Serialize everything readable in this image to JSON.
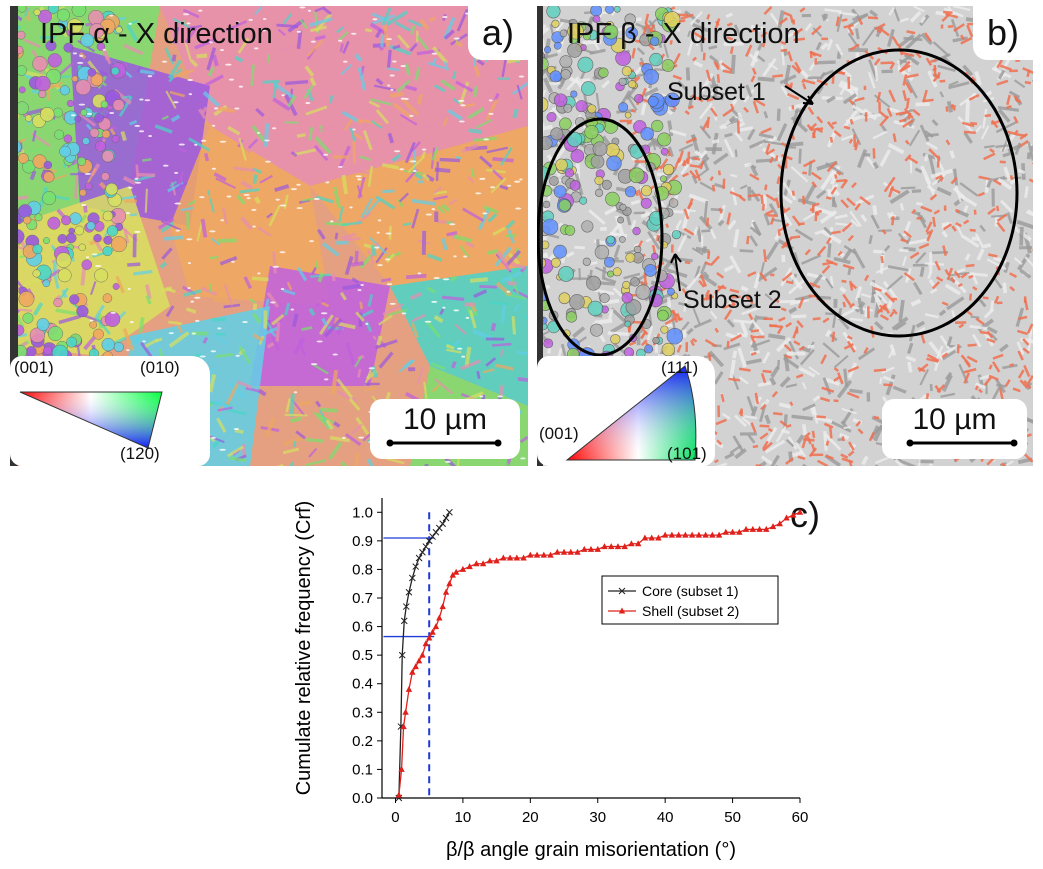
{
  "panel_a": {
    "title": "IPF α - X direction",
    "letter": "a)",
    "legend": {
      "top_left": "(001)",
      "top_right": "(010)",
      "bottom": "(120)"
    },
    "scale_label": "10 µm"
  },
  "panel_b": {
    "title": "IPF β - X direction",
    "letter": "b)",
    "legend": {
      "left": "(001)",
      "top": "(111)",
      "right": "(101)"
    },
    "scale_label": "10 µm",
    "subset1_label": "Subset 1",
    "subset2_label": "Subset 2"
  },
  "panel_c": {
    "letter": "c)"
  },
  "colors": {
    "core": "#222222",
    "shell": "#e0201b",
    "guide": "#1f3bd6",
    "alpha_colors": [
      "#e88fb0",
      "#f0a860",
      "#9b59e0",
      "#4ad6c8",
      "#d8e060",
      "#c060e0",
      "#60d0e8",
      "#7ae070"
    ]
  },
  "chart_data": {
    "type": "line",
    "xlabel": "β/β angle grain misorientation (°)",
    "ylabel": "Cumulate relative frequency (Crf)",
    "xlim": [
      -2,
      60
    ],
    "ylim": [
      0,
      1.05
    ],
    "xticks": [
      0,
      10,
      20,
      30,
      40,
      50,
      60
    ],
    "yticks": [
      0.0,
      0.1,
      0.2,
      0.3,
      0.4,
      0.5,
      0.6,
      0.7,
      0.8,
      0.9,
      1.0
    ],
    "ytick_labels": [
      "0.0",
      "0.1",
      "0.2",
      "0.3",
      "0.4",
      "0.5",
      "0.6",
      "0.7",
      "0.8",
      "0.9",
      "1.0"
    ],
    "legend_position": "center-right",
    "series": [
      {
        "name": "Core (subset 1)",
        "marker": "x",
        "color": "#222222",
        "x": [
          0.5,
          0.8,
          1.0,
          1.3,
          1.6,
          2.0,
          2.5,
          3.0,
          3.5,
          4.0,
          4.5,
          5.0,
          5.5,
          6.0,
          6.5,
          7.0,
          7.5,
          8.0
        ],
        "y": [
          0.0,
          0.25,
          0.5,
          0.62,
          0.67,
          0.72,
          0.77,
          0.81,
          0.84,
          0.86,
          0.88,
          0.9,
          0.915,
          0.93,
          0.945,
          0.96,
          0.98,
          1.0
        ]
      },
      {
        "name": "Shell (subset 2)",
        "marker": "triangle",
        "color": "#e0201b",
        "x": [
          0.5,
          0.9,
          1.2,
          1.5,
          2.0,
          2.5,
          3.0,
          3.5,
          4.0,
          4.5,
          5.0,
          5.5,
          6.0,
          6.5,
          7.0,
          7.5,
          8.0,
          8.5,
          9.0,
          10,
          11,
          12,
          13,
          14,
          15,
          16,
          17,
          18,
          19,
          20,
          21,
          22,
          23,
          24,
          25,
          26,
          27,
          28,
          29,
          30,
          31,
          32,
          33,
          34,
          35,
          36,
          37,
          38,
          39,
          40,
          41,
          42,
          43,
          44,
          45,
          46,
          47,
          48,
          49,
          50,
          51,
          52,
          53,
          54,
          55,
          56,
          57,
          58,
          59,
          60
        ],
        "y": [
          0.01,
          0.1,
          0.25,
          0.3,
          0.38,
          0.44,
          0.46,
          0.48,
          0.5,
          0.54,
          0.56,
          0.58,
          0.6,
          0.63,
          0.67,
          0.72,
          0.75,
          0.78,
          0.79,
          0.8,
          0.81,
          0.82,
          0.82,
          0.83,
          0.83,
          0.84,
          0.84,
          0.84,
          0.84,
          0.85,
          0.85,
          0.85,
          0.85,
          0.86,
          0.86,
          0.86,
          0.86,
          0.87,
          0.87,
          0.87,
          0.88,
          0.88,
          0.88,
          0.88,
          0.89,
          0.89,
          0.91,
          0.91,
          0.91,
          0.92,
          0.92,
          0.92,
          0.92,
          0.92,
          0.92,
          0.92,
          0.92,
          0.92,
          0.93,
          0.93,
          0.93,
          0.94,
          0.94,
          0.94,
          0.94,
          0.95,
          0.96,
          0.98,
          0.99,
          1.0
        ]
      }
    ],
    "reference_lines": {
      "vertical_x": 5,
      "horizontal_y": [
        0.91,
        0.565
      ],
      "horizontal_x_range": [
        0,
        5
      ]
    }
  }
}
